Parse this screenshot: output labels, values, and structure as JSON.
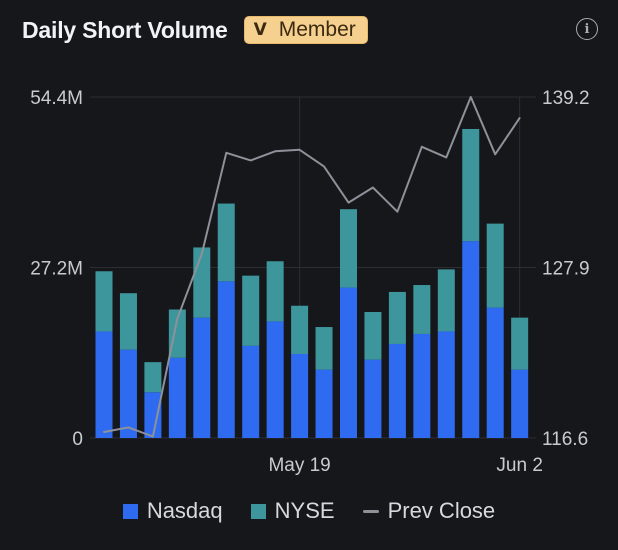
{
  "header": {
    "title": "Daily Short Volume",
    "badge_label": "Member",
    "badge_icon": "V",
    "info_icon": "i"
  },
  "chart_data": {
    "type": "bar",
    "stacked": true,
    "x_tick_labels": [
      "May 19",
      "Jun 2"
    ],
    "x_tick_index": [
      8,
      17
    ],
    "left_axis": {
      "ticks": [
        "0",
        "27.2M",
        "54.4M"
      ],
      "values": [
        0,
        27.2,
        54.4
      ],
      "ylim": [
        0,
        54.4
      ]
    },
    "right_axis": {
      "ticks": [
        "116.6",
        "127.9",
        "139.2"
      ],
      "values": [
        116.6,
        127.9,
        139.2
      ],
      "ylim": [
        116.6,
        139.2
      ]
    },
    "series": [
      {
        "name": "Nasdaq",
        "color": "#2e6bf0",
        "values": [
          17.0,
          14.1,
          7.3,
          12.8,
          19.2,
          25.0,
          14.7,
          18.6,
          13.4,
          10.9,
          24.0,
          12.5,
          15.0,
          16.6,
          17.0,
          31.4,
          20.8,
          10.9
        ]
      },
      {
        "name": "NYSE",
        "color": "#3e969d",
        "values": [
          9.6,
          9.0,
          4.8,
          7.7,
          11.2,
          12.4,
          11.2,
          9.6,
          7.7,
          6.8,
          12.5,
          7.6,
          8.3,
          7.8,
          9.9,
          17.9,
          13.4,
          8.3
        ]
      },
      {
        "name": "Prev Close",
        "color": "#8e9199",
        "type": "line",
        "axis": "right",
        "values": [
          117.0,
          117.3,
          116.7,
          124.5,
          128.8,
          135.5,
          135.0,
          135.6,
          135.7,
          134.6,
          132.2,
          133.2,
          131.6,
          135.9,
          135.2,
          139.2,
          135.4,
          137.8
        ]
      }
    ],
    "grid": true,
    "legend_position": "bottom-center"
  },
  "legend": [
    {
      "label": "Nasdaq",
      "color": "#2e6bf0",
      "kind": "box"
    },
    {
      "label": "NYSE",
      "color": "#3e969d",
      "kind": "box"
    },
    {
      "label": "Prev Close",
      "color": "#8e9199",
      "kind": "line"
    }
  ]
}
